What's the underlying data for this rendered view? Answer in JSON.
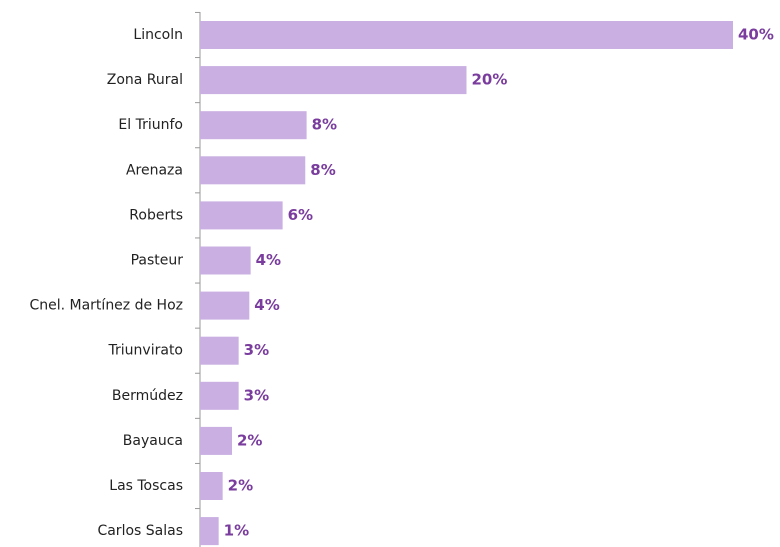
{
  "chart_data": {
    "type": "bar",
    "orientation": "horizontal",
    "categories": [
      "Lincoln",
      "Zona Rural",
      "El Triunfo",
      "Arenaza",
      "Roberts",
      "Pasteur",
      "Cnel. Martínez de Hoz",
      "Triunvirato",
      "Bermúdez",
      "Bayauca",
      "Las Toscas",
      "Carlos Salas"
    ],
    "values": [
      40,
      20,
      8,
      7.9,
      6.2,
      3.8,
      3.7,
      2.9,
      2.9,
      2.4,
      1.7,
      1.4
    ],
    "value_labels": [
      "40%",
      "20%",
      "8%",
      "8%",
      "6%",
      "4%",
      "4%",
      "3%",
      "3%",
      "2%",
      "2%",
      "1%"
    ],
    "color": "#c9afe2",
    "xlim": [
      0,
      40
    ]
  }
}
